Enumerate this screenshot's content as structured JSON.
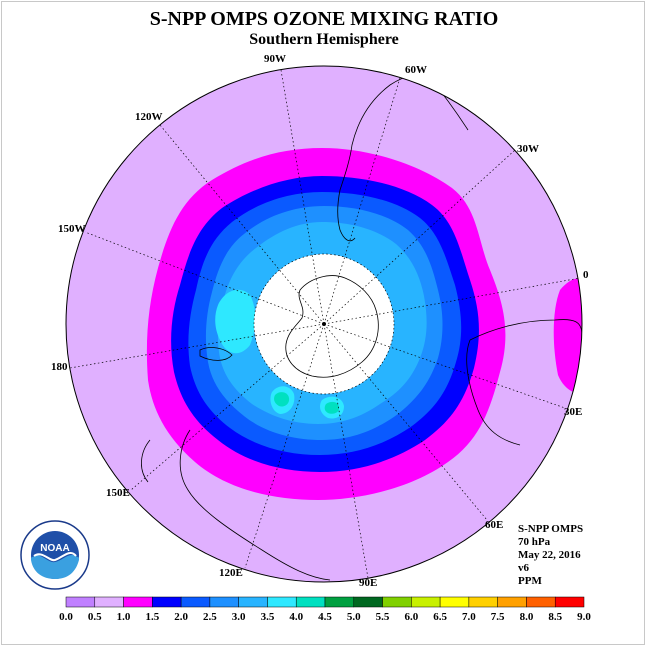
{
  "title": "S-NPP OMPS OZONE MIXING RATIO",
  "subtitle": "Southern Hemisphere",
  "longitude_labels": [
    "90W",
    "60W",
    "30W",
    "0",
    "30E",
    "60E",
    "90E",
    "120E",
    "150E",
    "180",
    "150W",
    "120W"
  ],
  "info": {
    "instrument": "S-NPP OMPS",
    "level": "70 hPa",
    "date": "May 22, 2016",
    "version": "v6",
    "units": "PPM"
  },
  "logo": {
    "text": "NOAA",
    "icon": "noaa-logo"
  },
  "colorbar": {
    "ticks": [
      "0.0",
      "0.5",
      "1.0",
      "1.5",
      "2.0",
      "2.5",
      "3.0",
      "3.5",
      "4.0",
      "4.5",
      "5.0",
      "5.5",
      "6.0",
      "6.5",
      "7.0",
      "7.5",
      "8.0",
      "8.5",
      "9.0"
    ],
    "colors": [
      "#c080ff",
      "#e0b0ff",
      "#ff00ff",
      "#0000ff",
      "#0a5aff",
      "#1e90ff",
      "#28b4ff",
      "#2ee8ff",
      "#00e0c0",
      "#00a040",
      "#006820",
      "#80d000",
      "#c8f000",
      "#ffff00",
      "#ffd000",
      "#ffa000",
      "#ff6000",
      "#ff0000",
      "#8b4513"
    ]
  },
  "colors": {
    "outer": "#e0b0ff",
    "band_magenta": "#ff00ff",
    "band_blue": "#0000ff",
    "band_mid": "#0a5aff",
    "band_light": "#1e90ff",
    "band_lighter": "#28b4ff",
    "inner_cyan": "#2ee8ff",
    "pole_hole": "#ffffff"
  }
}
